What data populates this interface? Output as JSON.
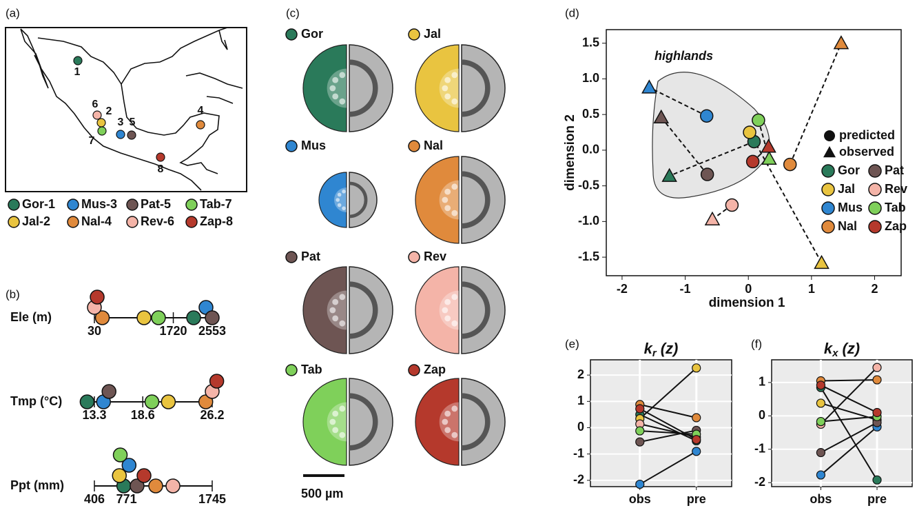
{
  "panel_labels": [
    "(a)",
    "(b)",
    "(c)",
    "(d)",
    "(e)",
    "(f)"
  ],
  "map": {
    "sites": [
      {
        "number": "1",
        "color": "#2a7a5a"
      },
      {
        "number": "2",
        "color": "#e9c440"
      },
      {
        "number": "3",
        "color": "#2f86d1"
      },
      {
        "number": "4",
        "color": "#e08a3c"
      },
      {
        "number": "5",
        "color": "#6e5553"
      },
      {
        "number": "6",
        "color": "#f4b4a8"
      },
      {
        "number": "7",
        "color": "#7fd05a"
      },
      {
        "number": "8",
        "color": "#b5392c"
      }
    ],
    "legend": [
      {
        "label": "Gor-1",
        "color": "#2a7a5a"
      },
      {
        "label": "Jal-2",
        "color": "#e9c440"
      },
      {
        "label": "Mus-3",
        "color": "#2f86d1"
      },
      {
        "label": "Nal-4",
        "color": "#e08a3c"
      },
      {
        "label": "Pat-5",
        "color": "#6e5553"
      },
      {
        "label": "Rev-6",
        "color": "#f4b4a8"
      },
      {
        "label": "Tab-7",
        "color": "#7fd05a"
      },
      {
        "label": "Zap-8",
        "color": "#b5392c"
      }
    ]
  },
  "sections": {
    "items": [
      {
        "label": "Gor",
        "color": "#2a7a5a"
      },
      {
        "label": "Jal",
        "color": "#e9c440"
      },
      {
        "label": "Mus",
        "color": "#2f86d1"
      },
      {
        "label": "Nal",
        "color": "#e08a3c"
      },
      {
        "label": "Pat",
        "color": "#6e5553"
      },
      {
        "label": "Rev",
        "color": "#f4b4a8"
      },
      {
        "label": "Tab",
        "color": "#7fd05a"
      },
      {
        "label": "Zap",
        "color": "#b5392c"
      }
    ],
    "scale_bar": "500 µm"
  },
  "chart_data": [
    {
      "type": "dotplot",
      "colors": [
        "#2a7a5a",
        "#e9c440",
        "#2f86d1",
        "#e08a3c",
        "#6e5553",
        "#f4b4a8",
        "#7fd05a",
        "#b5392c"
      ],
      "rows": [
        {
          "label": "Ele (m)",
          "xlim": [
            30,
            2553
          ],
          "xticks": [
            30,
            1720,
            2553
          ],
          "values": [
            2155,
            1093,
            2420,
            200,
            2553,
            30,
            1402,
            90
          ]
        },
        {
          "label": "Tmp (°C)",
          "xlim": [
            13.3,
            26.2
          ],
          "xticks": [
            13.3,
            18.6,
            26.2
          ],
          "values": [
            12.5,
            21.4,
            14.3,
            25.5,
            14.9,
            26.2,
            19.6,
            26.7
          ]
        },
        {
          "label": "Ppt (mm)",
          "xlim": [
            406,
            1745
          ],
          "xticks": [
            406,
            771,
            1745
          ],
          "values": [
            740,
            690,
            800,
            1103,
            891,
            1299,
            700,
            970
          ]
        }
      ]
    },
    {
      "type": "scatter",
      "xlabel": "dimension 1",
      "ylabel": "dimension 2",
      "annotation": "highlands",
      "xlim": [
        -2.25,
        2.42
      ],
      "ylim": [
        -1.76,
        1.69
      ],
      "xticks": [
        -2,
        -1,
        0,
        1,
        2
      ],
      "yticks": [
        1.5,
        {
          "value": 1,
          "label": "1.0"
        },
        0.5,
        {
          "value": 0,
          "label": "0.0"
        },
        -0.5,
        {
          "value": -1,
          "label": "-1.0"
        },
        -1.5
      ],
      "marker_labels": [
        "predicted",
        "observed"
      ],
      "series": [
        {
          "name": "Gor",
          "color": "#2a7a5a",
          "x": [
            0.09,
            -1.25
          ],
          "y": [
            0.12,
            -0.36
          ]
        },
        {
          "name": "Jal",
          "color": "#e9c440",
          "x": [
            0.02,
            1.16
          ],
          "y": [
            0.25,
            -1.58
          ]
        },
        {
          "name": "Mus",
          "color": "#2f86d1",
          "x": [
            -0.66,
            -1.57
          ],
          "y": [
            0.48,
            0.88
          ]
        },
        {
          "name": "Nal",
          "color": "#e08a3c",
          "x": [
            0.66,
            1.47
          ],
          "y": [
            -0.2,
            1.5
          ]
        },
        {
          "name": "Pat",
          "color": "#6e5553",
          "x": [
            -0.65,
            -1.38
          ],
          "y": [
            -0.34,
            0.46
          ]
        },
        {
          "name": "Rev",
          "color": "#f4b4a8",
          "x": [
            -0.26,
            -0.57
          ],
          "y": [
            -0.77,
            -0.97
          ]
        },
        {
          "name": "Tab",
          "color": "#7fd05a",
          "x": [
            0.16,
            0.33
          ],
          "y": [
            0.42,
            -0.12
          ]
        },
        {
          "name": "Zap",
          "color": "#b5392c",
          "x": [
            0.07,
            0.32
          ],
          "y": [
            -0.16,
            0.05
          ]
        }
      ]
    },
    {
      "type": "line",
      "title": {
        "symbol": "k",
        "subscript": "r",
        "argument": "(z)"
      },
      "categories": [
        "obs",
        "pre"
      ],
      "ylim": [
        -2.24,
        2.58
      ],
      "yticks": [
        -2,
        -1,
        0,
        1,
        2
      ],
      "series": [
        {
          "name": "Gor",
          "color": "#2a7a5a",
          "values": [
            0.5,
            -0.5
          ]
        },
        {
          "name": "Jal",
          "color": "#e9c440",
          "values": [
            0.34,
            2.27
          ]
        },
        {
          "name": "Mus",
          "color": "#2f86d1",
          "values": [
            -2.15,
            -0.9
          ]
        },
        {
          "name": "Nal",
          "color": "#e08a3c",
          "values": [
            0.88,
            0.38
          ]
        },
        {
          "name": "Pat",
          "color": "#6e5553",
          "values": [
            -0.54,
            -0.1
          ]
        },
        {
          "name": "Rev",
          "color": "#f4b4a8",
          "values": [
            0.14,
            -0.35
          ]
        },
        {
          "name": "Tab",
          "color": "#7fd05a",
          "values": [
            -0.12,
            -0.25
          ]
        },
        {
          "name": "Zap",
          "color": "#b5392c",
          "values": [
            0.72,
            -0.45
          ]
        }
      ]
    },
    {
      "type": "line",
      "title": {
        "symbol": "k",
        "subscript": "x",
        "argument": "(z)"
      },
      "categories": [
        "obs",
        "pre"
      ],
      "ylim": [
        -2.12,
        1.68
      ],
      "yticks": [
        -2,
        -1,
        0,
        1
      ],
      "series": [
        {
          "name": "Gor",
          "color": "#2a7a5a",
          "values": [
            0.85,
            -1.92
          ]
        },
        {
          "name": "Jal",
          "color": "#e9c440",
          "values": [
            0.38,
            -0.12
          ]
        },
        {
          "name": "Mus",
          "color": "#2f86d1",
          "values": [
            -1.77,
            -0.33
          ]
        },
        {
          "name": "Nal",
          "color": "#e08a3c",
          "values": [
            1.05,
            1.08
          ]
        },
        {
          "name": "Pat",
          "color": "#6e5553",
          "values": [
            -1.1,
            -0.2
          ]
        },
        {
          "name": "Rev",
          "color": "#f4b4a8",
          "values": [
            -0.25,
            1.45
          ]
        },
        {
          "name": "Tab",
          "color": "#7fd05a",
          "values": [
            -0.17,
            -0.02
          ]
        },
        {
          "name": "Zap",
          "color": "#b5392c",
          "values": [
            0.92,
            0.1
          ]
        }
      ]
    }
  ]
}
